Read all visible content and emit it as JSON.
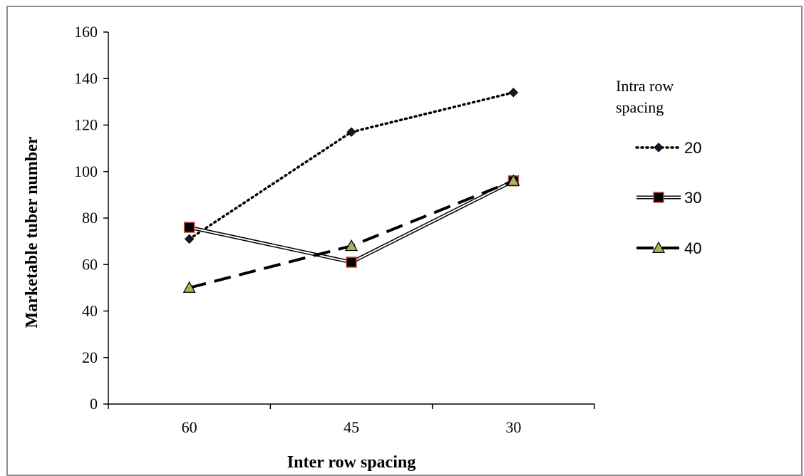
{
  "chart_data": {
    "type": "line",
    "xlabel": "Inter row spacing",
    "ylabel": "Marketable tuber number",
    "categories": [
      "60",
      "45",
      "30"
    ],
    "ylim": [
      0,
      160
    ],
    "yticks": [
      0,
      20,
      40,
      60,
      80,
      100,
      120,
      140,
      160
    ],
    "grid": false,
    "legend": {
      "title": "Intra row spacing",
      "title_lines": [
        "Intra row",
        "spacing"
      ],
      "placement": "right"
    },
    "series": [
      {
        "name": "20",
        "values": [
          71,
          117,
          134
        ],
        "line_style": "dotted",
        "marker": "diamond",
        "color": "#000000",
        "marker_color": "#0f1c2e"
      },
      {
        "name": "30",
        "values": [
          76,
          61,
          96
        ],
        "line_style": "double",
        "marker": "square",
        "color": "#000000",
        "marker_color": "#000000",
        "marker_edge": "#c0504d"
      },
      {
        "name": "40",
        "values": [
          50,
          68,
          96
        ],
        "line_style": "dashed",
        "marker": "triangle",
        "color": "#000000",
        "marker_color": "#9bbb59"
      }
    ]
  }
}
